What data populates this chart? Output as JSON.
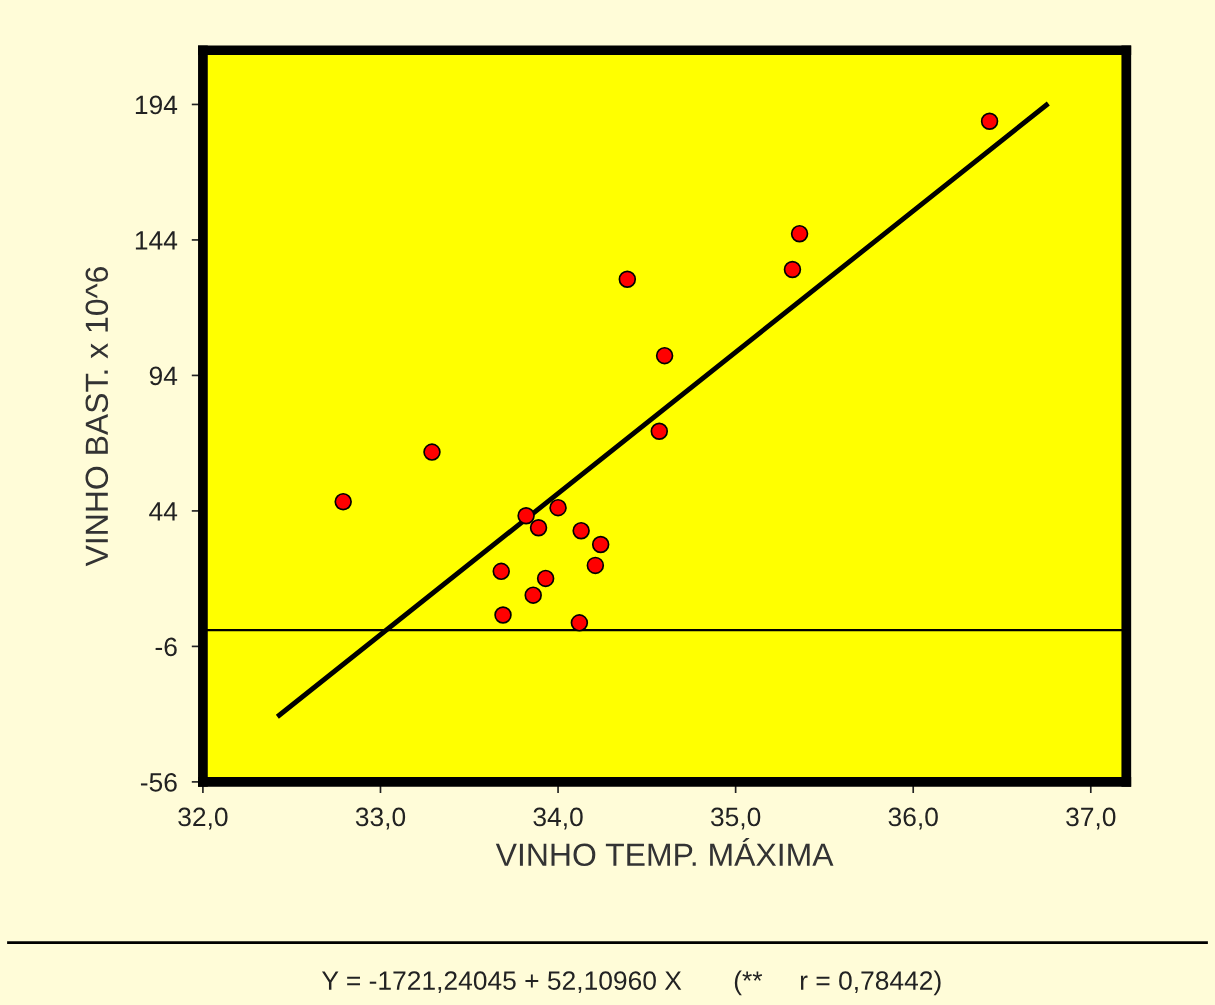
{
  "chart_data": {
    "type": "scatter",
    "xlabel": "VINHO TEMP. MÁXIMA",
    "ylabel": "VINHO BAST. x 10^6",
    "annotations": [
      "Y = -1721,24045 + 52,10960 X       (**     r = 0,78442)"
    ],
    "series": [
      {
        "color": "#ff0000",
        "marker": "circle",
        "x": [
          32.79,
          33.29,
          33.68,
          33.69,
          33.82,
          33.86,
          33.89,
          33.93,
          34.0,
          34.12,
          34.13,
          34.21,
          34.24,
          34.39,
          34.57,
          34.6,
          35.32,
          35.36,
          36.43
        ],
        "values": [
          47.4,
          65.7,
          21.7,
          5.6,
          42.2,
          12.9,
          37.8,
          19.1,
          45.2,
          2.7,
          36.7,
          23.9,
          31.6,
          129.5,
          73.4,
          101.3,
          133.1,
          146.3,
          187.8
        ]
      },
      {
        "type": "line",
        "color": "#000000",
        "x": [
          32.43,
          36.75
        ],
        "values": [
          -31.4,
          193.8
        ]
      }
    ],
    "ref_lines": [
      {
        "axis": "y",
        "value": 0,
        "color": "#000000"
      }
    ],
    "xlim": [
      32,
      37.2
    ],
    "ylim": [
      -56,
      214
    ],
    "xticks": [
      {
        "value": 32,
        "label": "32,0"
      },
      {
        "value": 33,
        "label": "33,0"
      },
      {
        "value": 34,
        "label": "34,0"
      },
      {
        "value": 35,
        "label": "35,0"
      },
      {
        "value": 36,
        "label": "36,0"
      },
      {
        "value": 37,
        "label": "37,0"
      }
    ],
    "yticks": [
      -56,
      -6,
      44,
      94,
      144,
      194
    ],
    "grid": false,
    "legend": false
  }
}
